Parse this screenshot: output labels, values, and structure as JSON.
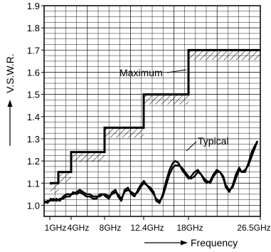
{
  "chart_data": {
    "type": "line",
    "xlabel": "Frequency",
    "ylabel": "V.S.W.R.",
    "ylim": [
      0.95,
      1.9
    ],
    "y_ticks": [
      "1.0",
      "1.1",
      "1.2",
      "1.3",
      "1.4",
      "1.5",
      "1.6",
      "1.7",
      "1.8",
      "1.9"
    ],
    "x_ticks": [
      {
        "label": "1GHz",
        "value": 1
      },
      {
        "label": "4GHz",
        "value": 4
      },
      {
        "label": "8GHz",
        "value": 8
      },
      {
        "label": "12.4GHz",
        "value": 12.4
      },
      {
        "label": "18GHz",
        "value": 18
      },
      {
        "label": "26.5GHz",
        "value": 26.5
      }
    ],
    "grid": true,
    "annotations": [
      "Maximum",
      "Typical"
    ],
    "maximum_steps": [
      {
        "from": "1GHz",
        "to": "2GHz",
        "vswr": 1.1
      },
      {
        "from": "2GHz",
        "to": "4GHz",
        "vswr": 1.15
      },
      {
        "from": "4GHz",
        "to": "8GHz",
        "vswr": 1.24
      },
      {
        "from": "8GHz",
        "to": "12.4GHz",
        "vswr": 1.35
      },
      {
        "from": "12.4GHz",
        "to": "18GHz",
        "vswr": 1.5
      },
      {
        "from": "18GHz",
        "to": "26.5GHz",
        "vswr": 1.7
      }
    ],
    "typical_curves": [
      [
        [
          0.0,
          1.01
        ],
        [
          0.4,
          1.02
        ],
        [
          0.8,
          1.02
        ],
        [
          1.1,
          1.03
        ],
        [
          1.5,
          1.02
        ],
        [
          1.9,
          1.03
        ],
        [
          2.3,
          1.03
        ],
        [
          2.7,
          1.04
        ],
        [
          3.1,
          1.04
        ],
        [
          3.5,
          1.06
        ],
        [
          3.9,
          1.05
        ],
        [
          4.3,
          1.06
        ],
        [
          4.7,
          1.05
        ],
        [
          5.1,
          1.04
        ],
        [
          5.5,
          1.04
        ],
        [
          5.9,
          1.03
        ],
        [
          6.3,
          1.03
        ],
        [
          6.7,
          1.05
        ],
        [
          7.1,
          1.05
        ],
        [
          7.4,
          1.04
        ],
        [
          7.8,
          1.03
        ],
        [
          8.2,
          1.06
        ],
        [
          8.6,
          1.07
        ],
        [
          8.9,
          1.04
        ],
        [
          9.3,
          1.02
        ],
        [
          9.7,
          1.07
        ],
        [
          10.1,
          1.08
        ],
        [
          10.5,
          1.05
        ],
        [
          10.9,
          1.04
        ],
        [
          11.3,
          1.07
        ],
        [
          11.6,
          1.09
        ],
        [
          12.0,
          1.11
        ],
        [
          12.4,
          1.09
        ],
        [
          12.8,
          1.08
        ],
        [
          13.2,
          1.06
        ],
        [
          13.5,
          1.02
        ],
        [
          13.9,
          1.01
        ],
        [
          14.3,
          1.05
        ],
        [
          14.7,
          1.11
        ],
        [
          15.1,
          1.16
        ],
        [
          15.5,
          1.19
        ],
        [
          15.8,
          1.2
        ],
        [
          16.2,
          1.19
        ],
        [
          16.6,
          1.16
        ],
        [
          17.0,
          1.14
        ],
        [
          17.4,
          1.12
        ],
        [
          17.7,
          1.13
        ],
        [
          18.1,
          1.15
        ],
        [
          18.5,
          1.16
        ],
        [
          18.9,
          1.14
        ],
        [
          19.3,
          1.11
        ],
        [
          19.6,
          1.1
        ],
        [
          20.0,
          1.11
        ],
        [
          20.4,
          1.14
        ],
        [
          20.8,
          1.16
        ],
        [
          21.2,
          1.15
        ],
        [
          21.6,
          1.12
        ],
        [
          21.9,
          1.08
        ],
        [
          22.3,
          1.06
        ],
        [
          22.7,
          1.09
        ],
        [
          23.1,
          1.14
        ],
        [
          23.5,
          1.17
        ],
        [
          23.8,
          1.15
        ],
        [
          24.2,
          1.15
        ],
        [
          24.6,
          1.19
        ],
        [
          25.0,
          1.24
        ],
        [
          25.4,
          1.27
        ],
        [
          25.7,
          1.29
        ]
      ],
      [
        [
          0.0,
          1.02
        ],
        [
          0.4,
          1.01
        ],
        [
          0.8,
          1.03
        ],
        [
          1.1,
          1.02
        ],
        [
          1.5,
          1.03
        ],
        [
          1.9,
          1.02
        ],
        [
          2.3,
          1.04
        ],
        [
          2.7,
          1.05
        ],
        [
          3.1,
          1.05
        ],
        [
          3.5,
          1.05
        ],
        [
          3.9,
          1.06
        ],
        [
          4.3,
          1.07
        ],
        [
          4.7,
          1.06
        ],
        [
          5.1,
          1.05
        ],
        [
          5.5,
          1.05
        ],
        [
          5.9,
          1.04
        ],
        [
          6.3,
          1.04
        ],
        [
          6.7,
          1.04
        ],
        [
          7.1,
          1.05
        ],
        [
          7.4,
          1.05
        ],
        [
          7.8,
          1.04
        ],
        [
          8.2,
          1.05
        ],
        [
          8.6,
          1.06
        ],
        [
          8.9,
          1.05
        ],
        [
          9.3,
          1.03
        ],
        [
          9.7,
          1.06
        ],
        [
          10.1,
          1.07
        ],
        [
          10.5,
          1.06
        ],
        [
          10.9,
          1.05
        ],
        [
          11.3,
          1.06
        ],
        [
          11.6,
          1.08
        ],
        [
          12.0,
          1.1
        ],
        [
          12.4,
          1.09
        ],
        [
          12.8,
          1.07
        ],
        [
          13.2,
          1.05
        ],
        [
          13.5,
          1.03
        ],
        [
          13.9,
          1.02
        ],
        [
          14.3,
          1.04
        ],
        [
          14.7,
          1.09
        ],
        [
          15.1,
          1.14
        ],
        [
          15.5,
          1.17
        ],
        [
          15.8,
          1.18
        ],
        [
          16.2,
          1.18
        ],
        [
          16.6,
          1.17
        ],
        [
          17.0,
          1.15
        ],
        [
          17.4,
          1.13
        ],
        [
          17.7,
          1.12
        ],
        [
          18.1,
          1.13
        ],
        [
          18.5,
          1.15
        ],
        [
          18.9,
          1.14
        ],
        [
          19.3,
          1.12
        ],
        [
          19.6,
          1.11
        ],
        [
          20.0,
          1.1
        ],
        [
          20.4,
          1.13
        ],
        [
          20.8,
          1.15
        ],
        [
          21.2,
          1.15
        ],
        [
          21.6,
          1.13
        ],
        [
          21.9,
          1.09
        ],
        [
          22.3,
          1.07
        ],
        [
          22.7,
          1.08
        ],
        [
          23.1,
          1.12
        ],
        [
          23.5,
          1.16
        ],
        [
          23.8,
          1.15
        ],
        [
          24.2,
          1.16
        ],
        [
          24.6,
          1.18
        ],
        [
          25.0,
          1.22
        ],
        [
          25.4,
          1.26
        ],
        [
          25.7,
          1.29
        ]
      ]
    ]
  }
}
